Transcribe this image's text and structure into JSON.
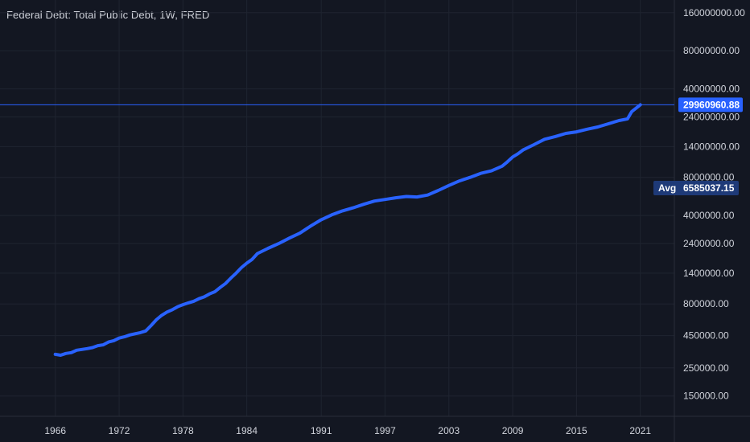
{
  "chart_data": {
    "type": "line",
    "title": "Federal Debt: Total Public Debt, 1W, FRED",
    "y_scale": "log",
    "ylim": [
      120000,
      190000000
    ],
    "xlim": [
      1960.8,
      2024.2
    ],
    "grid": true,
    "x_ticks": [
      "1966",
      "1972",
      "1978",
      "1984",
      "1991",
      "1997",
      "2003",
      "2009",
      "2015",
      "2021"
    ],
    "y_ticks": [
      "160000000.00",
      "80000000.00",
      "40000000.00",
      "24000000.00",
      "14000000.00",
      "8000000.00",
      "4000000.00",
      "2400000.00",
      "1400000.00",
      "800000.00",
      "450000.00",
      "250000.00",
      "150000.00"
    ],
    "last_value": 29960960.88,
    "last_value_label": "29960960.88",
    "avg_label": "Avg",
    "avg_value": 6585037.15,
    "avg_value_label": "6585037.15",
    "colors": {
      "background": "#131722",
      "line": "#2962ff",
      "grid": "#1f2430",
      "text": "#d1d4dc",
      "avg_badge": "#1e3a78"
    },
    "series": [
      {
        "x": [
          1966.0,
          1966.5,
          1967.0,
          1967.5,
          1968.0,
          1968.5,
          1969.0,
          1969.5,
          1970.0,
          1970.5,
          1971.0,
          1971.5,
          1972.0,
          1972.5,
          1973.0,
          1973.5,
          1974.0,
          1974.5,
          1975.0,
          1975.5,
          1976.0,
          1976.5,
          1977.0,
          1977.5,
          1978.0,
          1978.5,
          1979.0,
          1979.5,
          1980.0,
          1980.5,
          1981.0,
          1981.5,
          1982.0,
          1982.5,
          1983.0,
          1983.5,
          1984.0,
          1984.5,
          1985.0,
          1986.0,
          1987.0,
          1988.0,
          1989.0,
          1990.0,
          1991.0,
          1992.0,
          1993.0,
          1994.0,
          1995.0,
          1996.0,
          1997.0,
          1998.0,
          1999.0,
          2000.0,
          2001.0,
          2002.0,
          2003.0,
          2004.0,
          2005.0,
          2006.0,
          2007.0,
          2008.0,
          2008.5,
          2009.0,
          2009.5,
          2010.0,
          2011.0,
          2012.0,
          2013.0,
          2014.0,
          2015.0,
          2016.0,
          2017.0,
          2018.0,
          2019.0,
          2019.8,
          2020.2,
          2021.0
        ],
        "values": [
          320000,
          315000,
          325000,
          330000,
          345000,
          350000,
          355000,
          362000,
          375000,
          380000,
          400000,
          410000,
          430000,
          440000,
          455000,
          465000,
          475000,
          490000,
          540000,
          600000,
          650000,
          690000,
          720000,
          760000,
          790000,
          815000,
          840000,
          880000,
          910000,
          960000,
          1000000,
          1080000,
          1160000,
          1280000,
          1400000,
          1550000,
          1680000,
          1800000,
          2000000,
          2200000,
          2400000,
          2650000,
          2900000,
          3300000,
          3700000,
          4050000,
          4350000,
          4600000,
          4900000,
          5200000,
          5350000,
          5520000,
          5650000,
          5600000,
          5800000,
          6300000,
          6900000,
          7500000,
          8000000,
          8600000,
          9000000,
          9800000,
          10600000,
          11600000,
          12300000,
          13200000,
          14500000,
          16000000,
          16800000,
          17800000,
          18300000,
          19200000,
          20000000,
          21200000,
          22500000,
          23200000,
          26500000,
          29960960.88
        ]
      }
    ]
  }
}
